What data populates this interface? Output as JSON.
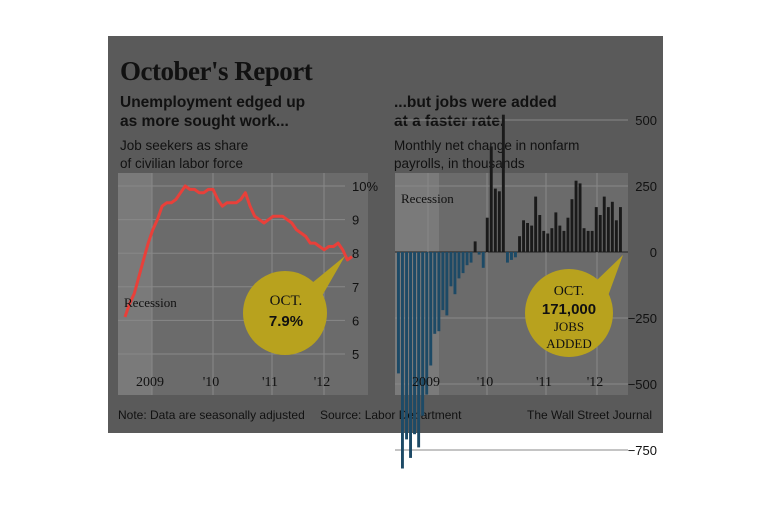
{
  "title": "October's Report",
  "left_chart": {
    "headline_line1": "Unemployment edged up",
    "headline_line2": "as more sought work...",
    "desc_line1": "Job seekers as share",
    "desc_line2": "of civilian labor force",
    "recession_label": "Recession",
    "callout_line1": "OCT.",
    "callout_line2": "7.9%"
  },
  "right_chart": {
    "headline_line1": "...but jobs were added",
    "headline_line2": "at a faster rate.",
    "desc_line1": "Monthly net change in nonfarm",
    "desc_line2": "payrolls, in thousands",
    "recession_label": "Recession",
    "callout_line1": "OCT.",
    "callout_line2": "171,000",
    "callout_line3": "JOBS",
    "callout_line4": "ADDED"
  },
  "footer": {
    "note": "Note: Data are seasonally adjusted",
    "source": "Source: Labor Department",
    "credit": "The Wall Street Journal"
  },
  "colors": {
    "background": "#5a5a5a",
    "line": "#e8403a",
    "bar_positive": "#1a1a1a",
    "bar_negative": "#1d4a66",
    "callout": "#b8a21e"
  },
  "chart_data": [
    {
      "type": "line",
      "x_ticks": [
        "2009",
        "'10",
        "'11",
        "'12"
      ],
      "y_ticks": [
        "10%",
        "9",
        "8",
        "7",
        "6",
        "5"
      ],
      "ylim": [
        5,
        10
      ],
      "x_start": "2008-09",
      "series": [
        {
          "values": [
            6.1,
            6.5,
            6.8,
            7.3,
            7.8,
            8.3,
            8.7,
            9.0,
            9.4,
            9.5,
            9.5,
            9.6,
            9.8,
            10.0,
            9.9,
            9.9,
            9.8,
            9.8,
            9.9,
            9.9,
            9.6,
            9.4,
            9.5,
            9.5,
            9.5,
            9.6,
            9.8,
            9.4,
            9.1,
            9.0,
            8.9,
            9.0,
            9.1,
            9.1,
            9.1,
            9.0,
            8.9,
            8.7,
            8.6,
            8.5,
            8.3,
            8.3,
            8.2,
            8.1,
            8.2,
            8.2,
            8.3,
            8.1,
            7.8,
            7.9
          ]
        }
      ]
    },
    {
      "type": "bar",
      "x_ticks": [
        "2009",
        "'10",
        "'11",
        "'12"
      ],
      "y_ticks": [
        "500",
        "250",
        "0",
        "−250",
        "−500",
        "−750"
      ],
      "ylim": [
        -850,
        550
      ],
      "x_start": "2008-09",
      "series": [
        {
          "values": [
            -460,
            -820,
            -710,
            -780,
            -690,
            -740,
            -620,
            -540,
            -430,
            -310,
            -300,
            -220,
            -240,
            -130,
            -160,
            -100,
            -80,
            -50,
            -40,
            40,
            -10,
            -60,
            130,
            400,
            240,
            230,
            520,
            -40,
            -30,
            -20,
            60,
            120,
            110,
            100,
            210,
            140,
            80,
            70,
            90,
            150,
            100,
            80,
            130,
            200,
            270,
            260,
            90,
            80,
            80,
            170,
            140,
            210,
            170,
            190,
            120,
            170
          ]
        }
      ]
    }
  ]
}
